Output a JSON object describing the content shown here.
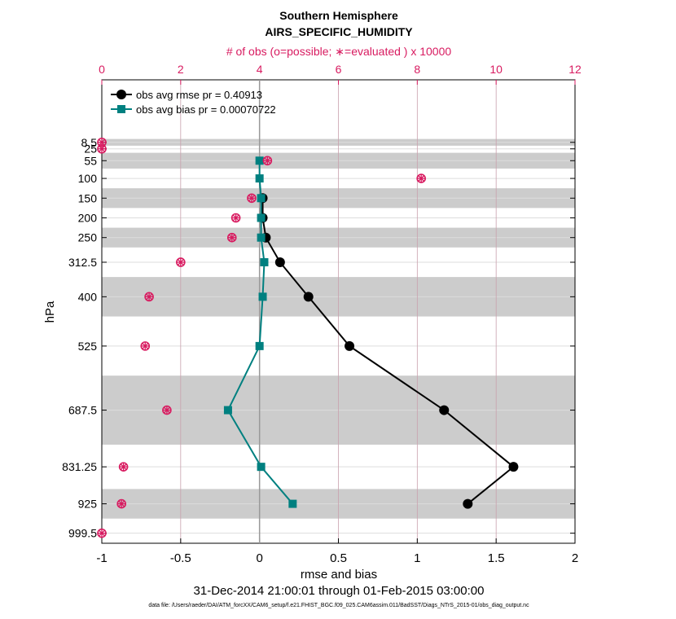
{
  "chart_data": {
    "type": "line",
    "title": "Southern Hemisphere",
    "subtitle": "AIRS_SPECIFIC_HUMIDITY",
    "top_axis_label": "# of obs (o=possible; ∗=evaluated ) x 10000",
    "xlabel": "rmse and bias",
    "ylabel": "hPa",
    "date_range": "31-Dec-2014 21:00:01 through 01-Feb-2015 03:00:00",
    "footer": "data file: /Users/raeder/DAI/ATM_forcXX/CAM6_setup/f.e21.FHIST_BGC.f09_025.CAM6assim.011/BadSST/Diags_NTrS_2015-01/obs_diag_output.nc",
    "xlim": [
      -1,
      2
    ],
    "xticks": [
      -1,
      -0.5,
      0,
      0.5,
      1,
      1.5,
      2
    ],
    "xtick_labels": [
      "-1",
      "-0.5",
      "0",
      "0.5",
      "1",
      "1.5",
      "2"
    ],
    "top_xlim": [
      0,
      12
    ],
    "top_xticks": [
      0,
      2,
      4,
      6,
      8,
      10,
      12
    ],
    "top_xtick_labels": [
      "0",
      "2",
      "4",
      "6",
      "8",
      "10",
      "12"
    ],
    "ylim": [
      1025,
      -150
    ],
    "levels": [
      8.5,
      25,
      55,
      100,
      150,
      200,
      250,
      312.5,
      400,
      525,
      687.5,
      831.25,
      925,
      999.5
    ],
    "level_labels": [
      "8.5",
      "25",
      "55",
      "100",
      "150",
      "200",
      "250",
      "312.5",
      "400",
      "525",
      "687.5",
      "831.25",
      "925",
      "999.5"
    ],
    "bands": [
      [
        0,
        17
      ],
      [
        35,
        75
      ],
      [
        125,
        175
      ],
      [
        225,
        275
      ],
      [
        350,
        450
      ],
      [
        600,
        775
      ],
      [
        887.5,
        962.5
      ]
    ],
    "series": [
      {
        "name": "obs avg rmse pr = 0.40913",
        "color": "#000000",
        "levels": [
          150,
          200,
          250,
          312.5,
          400,
          525,
          687.5,
          831.25,
          925
        ],
        "values": [
          0.02,
          0.02,
          0.04,
          0.13,
          0.31,
          0.57,
          1.17,
          1.61,
          1.32
        ]
      },
      {
        "name": "obs avg bias pr = 0.00070722",
        "color": "#008080",
        "levels": [
          55,
          100,
          150,
          200,
          250,
          312.5,
          400,
          525,
          687.5,
          831.25,
          925
        ],
        "values": [
          0.0,
          0.0,
          0.01,
          0.01,
          0.01,
          0.03,
          0.02,
          0.0,
          -0.2,
          0.01,
          0.21
        ]
      }
    ],
    "obs_counts": {
      "color": "#d81b60",
      "levels": [
        8.5,
        25,
        55,
        100,
        150,
        200,
        250,
        312.5,
        400,
        525,
        687.5,
        831.25,
        925,
        999.5
      ],
      "possible": [
        0.0,
        0.0,
        4.2,
        8.1,
        3.8,
        3.4,
        3.3,
        2.0,
        1.2,
        1.1,
        1.65,
        0.55,
        0.5,
        0.0
      ],
      "evaluated": [
        0.0,
        0.0,
        4.2,
        8.1,
        3.8,
        3.4,
        3.3,
        2.0,
        1.2,
        1.1,
        1.65,
        0.55,
        0.5,
        0.0
      ]
    },
    "legend": "top-left"
  }
}
